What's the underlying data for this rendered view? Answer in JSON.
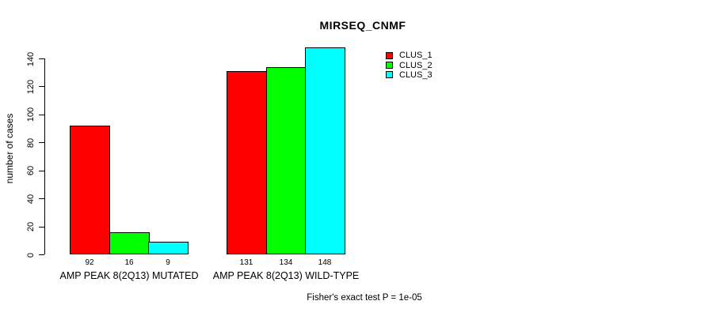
{
  "chart_data": {
    "type": "bar",
    "title": "MIRSEQ_CNMF",
    "ylabel": "number of cases",
    "xlabel": "",
    "ylim": [
      0,
      140
    ],
    "yticks": [
      0,
      20,
      40,
      60,
      80,
      100,
      120,
      140
    ],
    "grid": false,
    "legend_position": "top-right",
    "categories": [
      "AMP PEAK 8(2Q13) MUTATED",
      "AMP PEAK 8(2Q13) WILD-TYPE"
    ],
    "series": [
      {
        "name": "CLUS_1",
        "color": "#FF0000",
        "values": [
          92,
          131
        ]
      },
      {
        "name": "CLUS_2",
        "color": "#00FF00",
        "values": [
          16,
          134
        ]
      },
      {
        "name": "CLUS_3",
        "color": "#00FFFF",
        "values": [
          9,
          148
        ]
      }
    ],
    "bar_value_labels": [
      [
        92,
        16,
        9
      ],
      [
        131,
        134,
        148
      ]
    ],
    "annotation": "Fisher's exact test P = 1e-05",
    "axis_color": "#000000",
    "background_color": "#FFFFFF"
  }
}
